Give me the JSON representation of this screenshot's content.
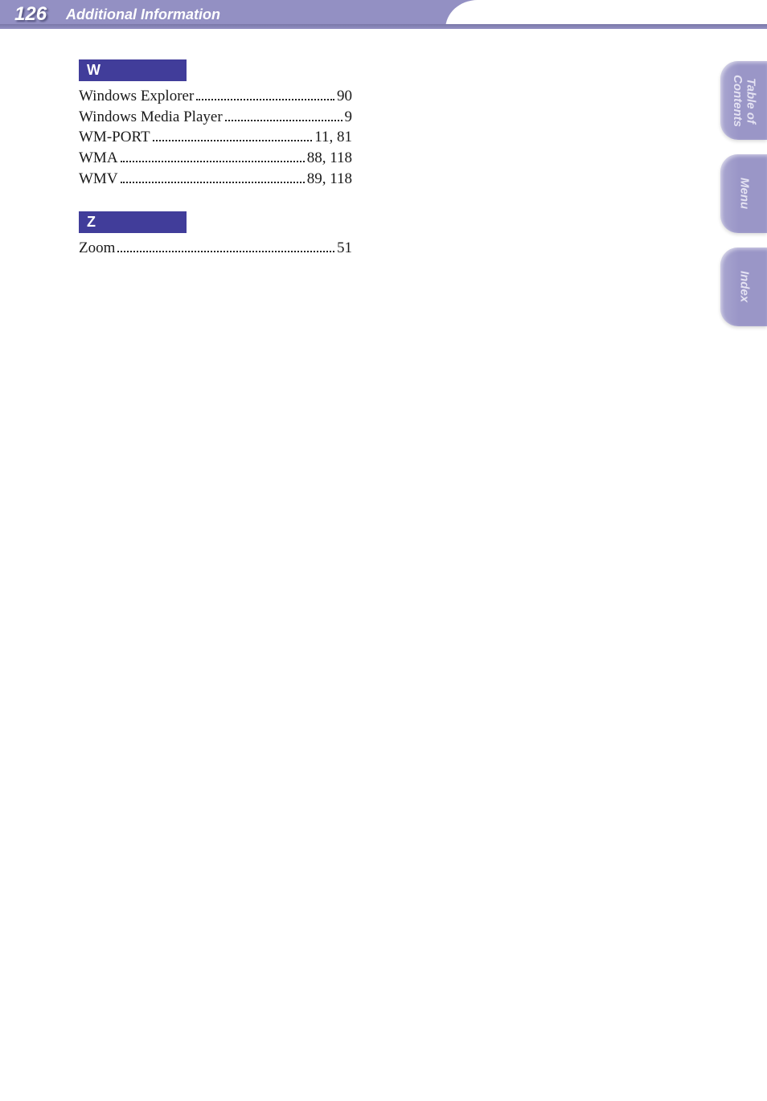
{
  "header": {
    "page_number": "126",
    "title": "Additional Information",
    "bar_color": "#9390c3",
    "text_color": "#ffffff"
  },
  "index": {
    "sections": [
      {
        "letter": "W",
        "entries": [
          {
            "term": "Windows Explorer",
            "pages": "90"
          },
          {
            "term": "Windows Media Player",
            "pages": "9"
          },
          {
            "term": "WM-PORT",
            "pages": "11, 81"
          },
          {
            "term": "WMA",
            "pages": "88, 118"
          },
          {
            "term": "WMV",
            "pages": "89, 118"
          }
        ]
      },
      {
        "letter": "Z",
        "entries": [
          {
            "term": "Zoom",
            "pages": "51"
          }
        ]
      }
    ],
    "heading_bg": "#413d9a",
    "heading_color": "#ffffff",
    "text_color": "#1a1a1a",
    "font_size_pt": 14
  },
  "side_tabs": {
    "items": [
      {
        "label": "Table of\nContents"
      },
      {
        "label": "Menu"
      },
      {
        "label": "Index"
      }
    ],
    "bg_color": "#9a96c7",
    "text_color": "#e4e2f2"
  }
}
